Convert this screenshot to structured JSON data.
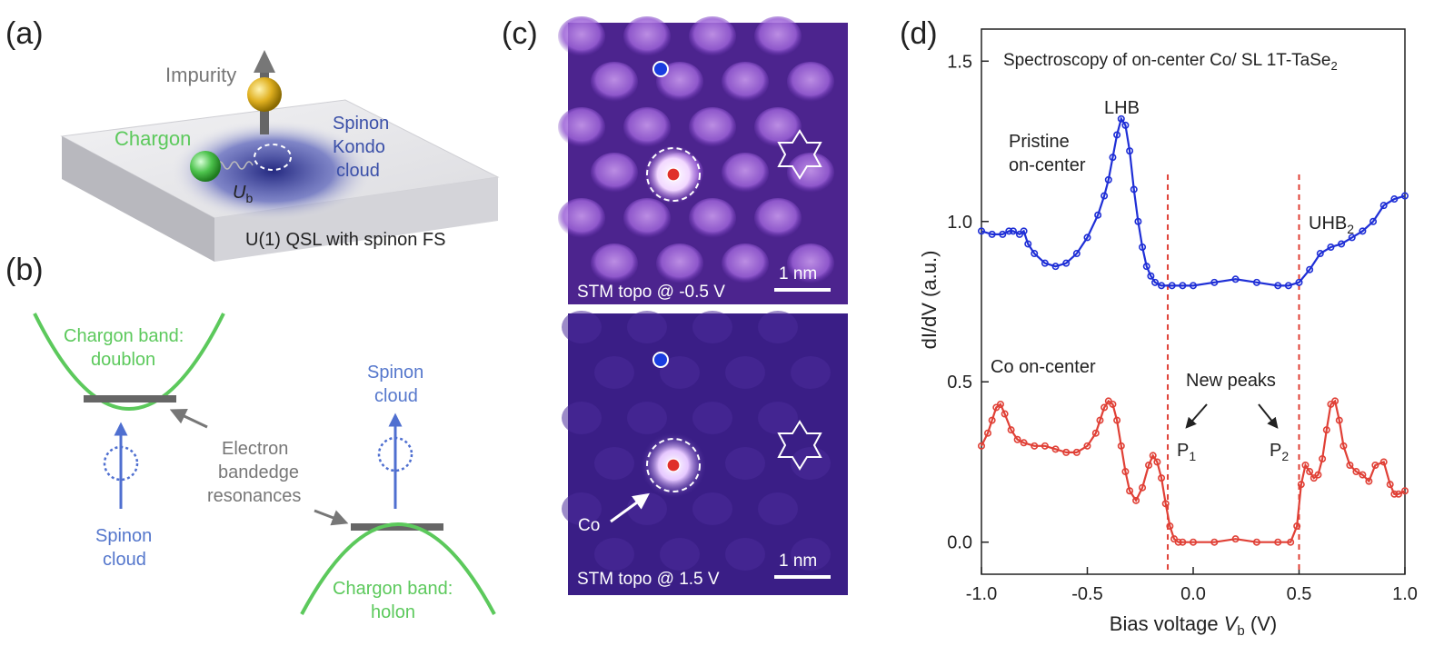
{
  "panel_a": {
    "label": "(a)",
    "impurity": "Impurity",
    "chargon": "Chargon",
    "spinon_kondo_line1": "Spinon",
    "spinon_kondo_line2": "Kondo",
    "spinon_kondo_line3": "cloud",
    "ub_main": "U",
    "ub_sub": "b",
    "plate": "U(1) QSL with spinon FS"
  },
  "panel_b": {
    "label": "(b)",
    "top_band_line1": "Chargon band:",
    "top_band_line2": "doublon",
    "bottom_band_line1": "Chargon band:",
    "bottom_band_line2": "holon",
    "spinon_left_line1": "Spinon",
    "spinon_left_line2": "cloud",
    "spinon_right_line1": "Spinon",
    "spinon_right_line2": "cloud",
    "resonance_line1": "Electron",
    "resonance_line2": "bandedge",
    "resonance_line3": "resonances"
  },
  "panel_c": {
    "label": "(c)",
    "top_caption": "STM topo @ -0.5 V",
    "bottom_caption": "STM topo @ 1.5 V",
    "scale_top": "1 nm",
    "scale_bottom": "1 nm",
    "co_label": "Co"
  },
  "panel_d": {
    "label": "(d)",
    "title_main": "Spectroscopy of on-center Co/ SL 1T-TaSe",
    "title_sub": "2",
    "pristine_line1": "Pristine",
    "pristine_line2": "on-center",
    "co_label": "Co on-center",
    "lhb": "LHB",
    "uhb_main": "UHB",
    "uhb_sub": "2",
    "new_peaks": "New peaks",
    "p1_main": "P",
    "p1_sub": "1",
    "p2_main": "P",
    "p2_sub": "2",
    "xlabel_main": "Bias voltage ",
    "xlabel_var": "V",
    "xlabel_sub": "b",
    "xlabel_unit": " (V)",
    "ylabel": "dI/dV (a.u.)"
  },
  "chart_data": {
    "type": "line",
    "title": "Spectroscopy of on-center Co/ SL 1T-TaSe2",
    "xlabel": "Bias voltage Vb (V)",
    "ylabel": "dI/dV (a.u.)",
    "xlim": [
      -1.0,
      1.0
    ],
    "ylim": [
      -0.1,
      1.6
    ],
    "xticks": [
      "-1.0",
      "-0.5",
      "0.0",
      "0.5",
      "1.0"
    ],
    "yticks": [
      "0.0",
      "0.5",
      "1.0",
      "1.5"
    ],
    "xtick_values": [
      -1.0,
      -0.5,
      0.0,
      0.5,
      1.0
    ],
    "ytick_values": [
      0.0,
      0.5,
      1.0,
      1.5
    ],
    "vlines": [
      -0.12,
      0.5
    ],
    "series": [
      {
        "name": "Pristine on-center",
        "color": "#1f2fd6",
        "x": [
          -1.0,
          -0.95,
          -0.9,
          -0.87,
          -0.85,
          -0.82,
          -0.8,
          -0.78,
          -0.75,
          -0.7,
          -0.65,
          -0.6,
          -0.55,
          -0.5,
          -0.45,
          -0.42,
          -0.4,
          -0.38,
          -0.36,
          -0.34,
          -0.32,
          -0.3,
          -0.28,
          -0.26,
          -0.24,
          -0.22,
          -0.2,
          -0.18,
          -0.15,
          -0.1,
          -0.05,
          0.0,
          0.1,
          0.2,
          0.3,
          0.4,
          0.45,
          0.5,
          0.55,
          0.6,
          0.65,
          0.7,
          0.75,
          0.8,
          0.85,
          0.9,
          0.95,
          1.0
        ],
        "y": [
          0.97,
          0.96,
          0.96,
          0.97,
          0.97,
          0.96,
          0.97,
          0.93,
          0.9,
          0.87,
          0.86,
          0.87,
          0.9,
          0.95,
          1.02,
          1.08,
          1.13,
          1.2,
          1.27,
          1.32,
          1.3,
          1.22,
          1.1,
          1.0,
          0.92,
          0.86,
          0.83,
          0.81,
          0.8,
          0.8,
          0.8,
          0.8,
          0.81,
          0.82,
          0.81,
          0.8,
          0.8,
          0.81,
          0.85,
          0.9,
          0.92,
          0.93,
          0.95,
          0.97,
          1.0,
          1.05,
          1.07,
          1.08
        ]
      },
      {
        "name": "Co on-center",
        "color": "#e04036",
        "x": [
          -1.0,
          -0.97,
          -0.95,
          -0.93,
          -0.91,
          -0.89,
          -0.86,
          -0.83,
          -0.8,
          -0.75,
          -0.7,
          -0.65,
          -0.6,
          -0.55,
          -0.5,
          -0.46,
          -0.44,
          -0.42,
          -0.4,
          -0.38,
          -0.36,
          -0.34,
          -0.32,
          -0.3,
          -0.27,
          -0.24,
          -0.21,
          -0.19,
          -0.17,
          -0.15,
          -0.13,
          -0.11,
          -0.09,
          -0.07,
          -0.05,
          0.0,
          0.1,
          0.2,
          0.3,
          0.4,
          0.46,
          0.49,
          0.51,
          0.53,
          0.55,
          0.57,
          0.59,
          0.61,
          0.63,
          0.65,
          0.67,
          0.69,
          0.71,
          0.74,
          0.77,
          0.8,
          0.83,
          0.86,
          0.9,
          0.93,
          0.95,
          0.97,
          1.0
        ],
        "y": [
          0.3,
          0.34,
          0.38,
          0.42,
          0.43,
          0.4,
          0.35,
          0.32,
          0.31,
          0.3,
          0.3,
          0.29,
          0.28,
          0.28,
          0.3,
          0.34,
          0.38,
          0.42,
          0.44,
          0.43,
          0.38,
          0.3,
          0.22,
          0.16,
          0.13,
          0.17,
          0.24,
          0.27,
          0.25,
          0.2,
          0.12,
          0.05,
          0.01,
          0.0,
          0.0,
          0.0,
          0.0,
          0.01,
          0.0,
          0.0,
          0.0,
          0.05,
          0.18,
          0.24,
          0.22,
          0.2,
          0.21,
          0.26,
          0.35,
          0.43,
          0.44,
          0.38,
          0.3,
          0.24,
          0.22,
          0.21,
          0.19,
          0.24,
          0.25,
          0.18,
          0.15,
          0.15,
          0.16
        ]
      }
    ]
  }
}
